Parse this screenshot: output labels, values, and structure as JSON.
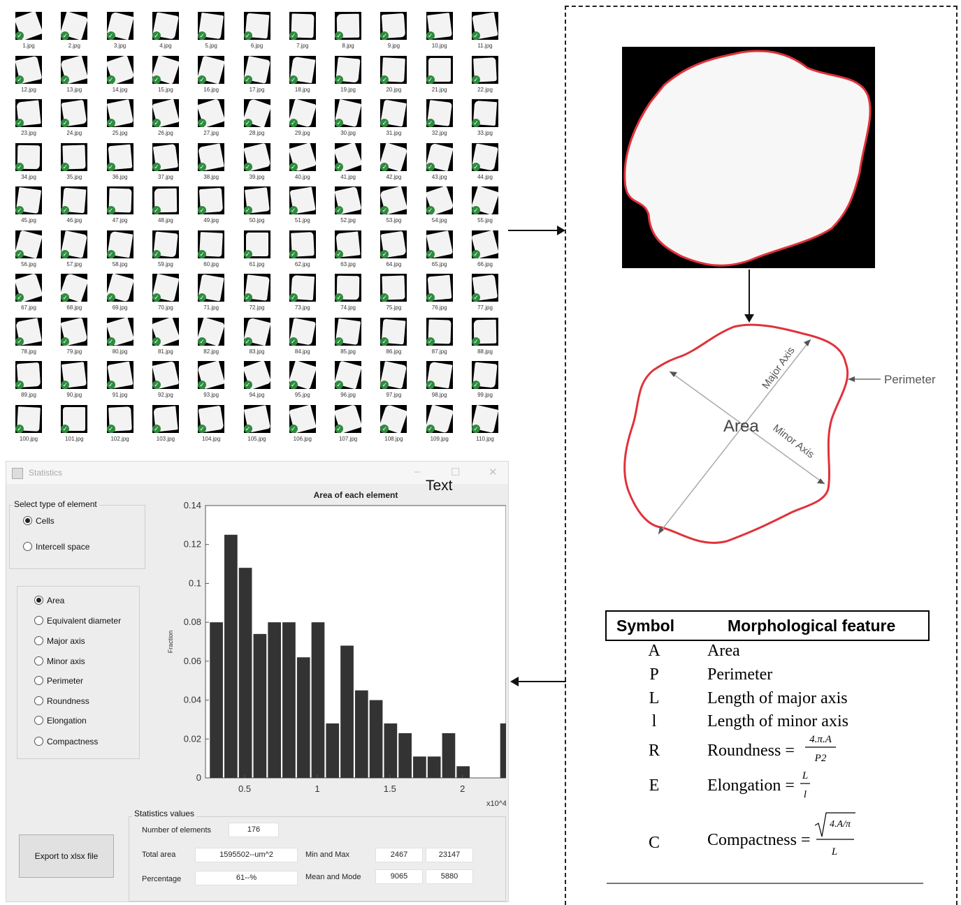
{
  "thumbnails": {
    "files": [
      "1.jpg",
      "2.jpg",
      "3.jpg",
      "4.jpg",
      "5.jpg",
      "6.jpg",
      "7.jpg",
      "8.jpg",
      "9.jpg",
      "10.jpg",
      "11.jpg",
      "12.jpg",
      "13.jpg",
      "14.jpg",
      "15.jpg",
      "16.jpg",
      "17.jpg",
      "18.jpg",
      "19.jpg",
      "20.jpg",
      "21.jpg",
      "22.jpg",
      "23.jpg",
      "24.jpg",
      "25.jpg",
      "26.jpg",
      "27.jpg",
      "28.jpg",
      "29.jpg",
      "30.jpg",
      "31.jpg",
      "32.jpg",
      "33.jpg",
      "34.jpg",
      "35.jpg",
      "36.jpg",
      "37.jpg",
      "38.jpg",
      "39.jpg",
      "40.jpg",
      "41.jpg",
      "42.jpg",
      "43.jpg",
      "44.jpg",
      "45.jpg",
      "46.jpg",
      "47.jpg",
      "48.jpg",
      "49.jpg",
      "50.jpg",
      "51.jpg",
      "52.jpg",
      "53.jpg",
      "54.jpg",
      "55.jpg",
      "56.jpg",
      "57.jpg",
      "58.jpg",
      "59.jpg",
      "60.jpg",
      "61.jpg",
      "62.jpg",
      "63.jpg",
      "64.jpg",
      "65.jpg",
      "66.jpg",
      "67.jpg",
      "68.jpg",
      "69.jpg",
      "70.jpg",
      "71.jpg",
      "72.jpg",
      "73.jpg",
      "74.jpg",
      "75.jpg",
      "76.jpg",
      "77.jpg",
      "78.jpg",
      "79.jpg",
      "80.jpg",
      "81.jpg",
      "82.jpg",
      "83.jpg",
      "84.jpg",
      "85.jpg",
      "86.jpg",
      "87.jpg",
      "88.jpg",
      "89.jpg",
      "90.jpg",
      "91.jpg",
      "92.jpg",
      "93.jpg",
      "94.jpg",
      "95.jpg",
      "96.jpg",
      "97.jpg",
      "98.jpg",
      "99.jpg",
      "100.jpg",
      "101.jpg",
      "102.jpg",
      "103.jpg",
      "104.jpg",
      "105.jpg",
      "106.jpg",
      "107.jpg",
      "108.jpg",
      "109.jpg",
      "110.jpg"
    ],
    "check_glyph": "✓",
    "check_color": "#2e8b3e"
  },
  "window": {
    "title": "Statistics",
    "minimize": "–",
    "maximize": "☐",
    "close": "✕",
    "overlay_text": "Text"
  },
  "element_type": {
    "title": "Select type of element",
    "options": [
      {
        "label": "Cells",
        "selected": true
      },
      {
        "label": "Intercell space",
        "selected": false
      }
    ]
  },
  "feature_select": {
    "options": [
      {
        "label": "Area",
        "selected": true
      },
      {
        "label": "Equivalent diameter",
        "selected": false
      },
      {
        "label": "Major axis",
        "selected": false
      },
      {
        "label": "Minor axis",
        "selected": false
      },
      {
        "label": "Perimeter",
        "selected": false
      },
      {
        "label": "Roundness",
        "selected": false
      },
      {
        "label": "Elongation",
        "selected": false
      },
      {
        "label": "Compactness",
        "selected": false
      }
    ]
  },
  "chart_data": {
    "type": "bar",
    "title": "Area of each element",
    "xlabel": "",
    "ylabel": "Fraction",
    "x_ticks": [
      "0.5",
      "1",
      "1.5",
      "2"
    ],
    "x_tick_values": [
      0.5,
      1,
      1.5,
      2
    ],
    "x_exponent_label": "x10^4",
    "xlim": [
      0.23,
      2.3
    ],
    "ylim": [
      0,
      0.14
    ],
    "y_ticks": [
      "0",
      "0.02",
      "0.04",
      "0.06",
      "0.08",
      "0.1",
      "0.12",
      "0.14"
    ],
    "y_tick_values": [
      0,
      0.02,
      0.04,
      0.06,
      0.08,
      0.1,
      0.12,
      0.14
    ],
    "bin_centers": [
      0.305,
      0.405,
      0.505,
      0.605,
      0.705,
      0.805,
      0.905,
      1.005,
      1.105,
      1.205,
      1.305,
      1.405,
      1.505,
      1.605,
      1.705,
      1.805,
      1.905,
      2.005,
      2.105,
      2.305
    ],
    "values": [
      0.08,
      0.125,
      0.108,
      0.074,
      0.08,
      0.08,
      0.062,
      0.08,
      0.028,
      0.068,
      0.045,
      0.04,
      0.028,
      0.023,
      0.011,
      0.011,
      0.023,
      0.006,
      0.0,
      0.028
    ],
    "bar_color": "#333333",
    "grid": false
  },
  "statistics": {
    "title": "Statistics values",
    "number_of_elements": {
      "label": "Number of elements",
      "value": "176"
    },
    "total_area": {
      "label": "Total area",
      "value": "1595502--um^2"
    },
    "percentage": {
      "label": "Percentage",
      "value": "61--%"
    },
    "min_max": {
      "label": "Min and Max",
      "min": "2467",
      "max": "23147"
    },
    "mean_mode": {
      "label": "Mean and Mode",
      "mean": "9065",
      "mode": "5880"
    }
  },
  "export_button": "Export to xlsx file",
  "cell_diagram": {
    "major_axis": "Major Axis",
    "minor_axis": "Minor Axis",
    "area": "Area",
    "perimeter": "Perimeter",
    "outline_color": "#e0323a"
  },
  "feature_table": {
    "header_symbol": "Symbol",
    "header_feature": "Morphological feature",
    "rows": [
      {
        "symbol": "A",
        "feature": "Area"
      },
      {
        "symbol": "P",
        "feature": "Perimeter"
      },
      {
        "symbol": "L",
        "feature": "Length of major axis"
      },
      {
        "symbol": "l",
        "feature": "Length of minor axis"
      },
      {
        "symbol": "R",
        "feature": "Roundness"
      },
      {
        "symbol": "E",
        "feature": "Elongation"
      },
      {
        "symbol": "C",
        "feature": "Compactness"
      }
    ],
    "formulas": {
      "equals": "=",
      "roundness_num": "4.π.A",
      "roundness_den": "P2",
      "elongation_num": "L",
      "elongation_den": "l",
      "compactness_num": "4.A/π",
      "compactness_den": "L"
    }
  }
}
